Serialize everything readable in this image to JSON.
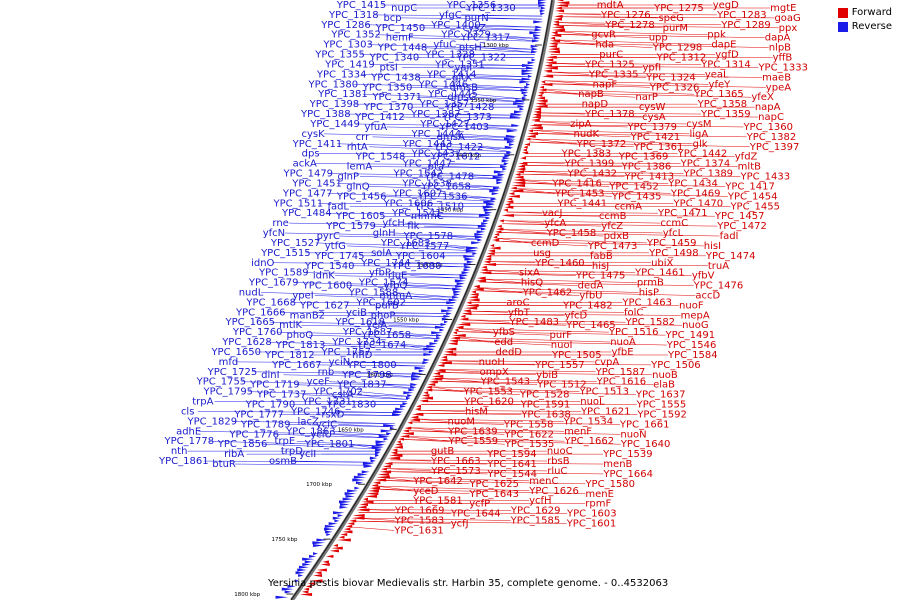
{
  "title": "Yersinia pestis biovar Medievalis str. Harbin 35, complete genome. - 0..4532063",
  "legend": {
    "forward_label": "Forward",
    "reverse_label": "Reverse",
    "forward_color": "#e00000",
    "reverse_color": "#1c1ce8"
  },
  "ticks": [
    "1300 kbp",
    "1350 kbp",
    "1400 kbp",
    "1450 kbp",
    "1500 kbp",
    "1550 kbp",
    "1600 kbp",
    "1650 kbp",
    "1700 kbp",
    "1750 kbp",
    "1800 kbp"
  ],
  "reverse_genes": [
    "YPC_1415",
    "nupC",
    "YPC_1356",
    "YPC_1330",
    "YPC_1318",
    "bcp",
    "yfgC",
    "purN",
    "YPC_1286",
    "YPC_1450",
    "YPC_1400",
    "cysZ",
    "YPC_1352",
    "hemF",
    "YPC_1329",
    "YPC_1317",
    "YPC_1303",
    "YPC_1448",
    "yfuC",
    "ptsH",
    "YPC_1355",
    "YPC_1340",
    "YPC_1328",
    "YPC_1322",
    "YPC_1419",
    "ptsI",
    "YPC_1351",
    "yaiI",
    "YPC_1334",
    "YPC_1438",
    "YPC_1414",
    "gltX",
    "YPC_1380",
    "YPC_1350",
    "YPC_1446",
    "dmsB",
    "YPC_1381",
    "YPC_1371",
    "YPC_1445",
    "dmsC",
    "YPC_1398",
    "YPC_1370",
    "YPC_1357",
    "YPC_1428",
    "YPC_1388",
    "YPC_1412",
    "YPC_1387",
    "YPC_1373",
    "YPC_1449",
    "yfuA",
    "YPC_1427",
    "YPC_1403",
    "cysK",
    "crr",
    "YPC_1444",
    "dmsA",
    "YPC_1411",
    "rhtA",
    "YPC_1443",
    "YPC_1422",
    "dps",
    "YPC_1548",
    "YPC_1437",
    "YPC_1612",
    "ackA",
    "lemA",
    "YPC_1447",
    "pta",
    "YPC_1479",
    "glnP",
    "YPC_1542",
    "YPC_1478",
    "YPC_1451",
    "glnQ",
    "YPC_1538",
    "YPC_1658",
    "YPC_1477",
    "YPC_1456",
    "YPC_1607",
    "YPC_1536",
    "YPC_1511",
    "fadL",
    "YPC_1606",
    "YPC_1510",
    "YPC_1484",
    "YPC_1605",
    "YPC_1541",
    "mnmC",
    "rne",
    "YPC_1579",
    "yfcH",
    "flk",
    "yfcN",
    "pyrC",
    "glnH",
    "YPC_1578",
    "YPC_1527",
    "ytfG",
    "YPC_1683",
    "YPC_1577",
    "YPC_1515",
    "YPC_1745",
    "solA",
    "YPC_1604",
    "idnO",
    "YPC_1540",
    "YPC_1744",
    "YPC_1680",
    "YPC_1589",
    "idnK",
    "yfbP",
    "rluE",
    "YPC_1679",
    "YPC_1600",
    "YPC_1574",
    "yfbQ",
    "nudL",
    "ypeI",
    "YPC_1588",
    "mnmA",
    "YPC_1668",
    "YPC_1627",
    "YPC_1602",
    "purB",
    "YPC_1666",
    "manB2",
    "yciB",
    "phoP",
    "YPC_1665",
    "mtlK",
    "YPC_1618",
    "yciA",
    "YPC_1760",
    "phoQ",
    "YPC_1687",
    "YPC_1658",
    "YPC_1628",
    "YPC_1813",
    "YPC_1734",
    "YPC_1674",
    "YPC_1650",
    "YPC_1812",
    "YPC_1757",
    "hflD",
    "mfd",
    "YPC_1667",
    "yciN",
    "YPC_1800",
    "YPC_1725",
    "dinI",
    "rnb",
    "YPC_1798",
    "YPC_1755",
    "YPC_1719",
    "yceF",
    "YPC_1837",
    "YPC_1795",
    "YPC_1737",
    "YPC_1702",
    "cstA",
    "trpA",
    "YPC_1790",
    "YPC_1731",
    "YPC_1830",
    "cls",
    "YPC_1777",
    "YPC_1746",
    "rsxD",
    "YPC_1829",
    "YPC_1789",
    "lacZ",
    "yciC",
    "adhE",
    "YPC_1776",
    "YPC_1863",
    "yciU",
    "YPC_1778",
    "YPC_1856",
    "trpE",
    "YPC_1801",
    "nth",
    "ribA",
    "trpD",
    "yciI",
    "YPC_1861",
    "btuR",
    "osmB"
  ],
  "forward_genes": [
    "mdtA",
    "YPC_1275",
    "yegD",
    "mgtE",
    "YPC_1276",
    "speG",
    "YPC_1283",
    "goaG",
    "YPC_1278",
    "purM",
    "YPC_1289",
    "ppx",
    "gcvR",
    "upp",
    "ppk",
    "dapA",
    "hda",
    "YPC_1298",
    "dapE",
    "nlpB",
    "purC",
    "YPC_1312",
    "ygfD",
    "yffB",
    "YPC_1325",
    "ypfI",
    "YPC_1314",
    "YPC_1333",
    "YPC_1335",
    "YPC_1324",
    "yeaL",
    "maeB",
    "napF",
    "YPC_1326",
    "yfeY",
    "ypeA",
    "napB",
    "narP",
    "YPC_1365",
    "yfeX",
    "napD",
    "cysW",
    "YPC_1358",
    "napA",
    "YPC_1378",
    "cysA",
    "YPC_1359",
    "napC",
    "zipA",
    "YPC_1379",
    "cysM",
    "YPC_1360",
    "nudK",
    "YPC_1421",
    "ligA",
    "YPC_1382",
    "YPC_1372",
    "YPC_1361",
    "glk",
    "YPC_1397",
    "YPC_1383",
    "YPC_1369",
    "YPC_1442",
    "yfdZ",
    "YPC_1399",
    "YPC_1386",
    "YPC_1374",
    "mltB",
    "YPC_1432",
    "YPC_1413",
    "YPC_1389",
    "YPC_1433",
    "YPC_1416",
    "YPC_1452",
    "YPC_1434",
    "YPC_1417",
    "YPC_1453",
    "YPC_1435",
    "YPC_1469",
    "YPC_1454",
    "YPC_1441",
    "ccmA",
    "YPC_1470",
    "YPC_1455",
    "vacJ",
    "ccmB",
    "YPC_1471",
    "YPC_1457",
    "yfcA",
    "yfcZ",
    "ccmC",
    "YPC_1472",
    "YPC_1458",
    "pdxB",
    "yfcL",
    "fadI",
    "ccmD",
    "YPC_1473",
    "YPC_1459",
    "hisI",
    "usg",
    "fabB",
    "YPC_1498",
    "YPC_1474",
    "YPC_1460",
    "hisJ",
    "ubiX",
    "truA",
    "sixA",
    "YPC_1475",
    "YPC_1461",
    "yfbV",
    "hisQ",
    "dedA",
    "prmB",
    "YPC_1476",
    "YPC_1462",
    "yfbU",
    "hisP",
    "accD",
    "aroC",
    "YPC_1482",
    "YPC_1463",
    "nuoF",
    "yfbT",
    "yfcD",
    "folC",
    "mepA",
    "YPC_1483",
    "YPC_1465",
    "YPC_1582",
    "nuoG",
    "yfbS",
    "purF",
    "YPC_1516",
    "YPC_1491",
    "edd",
    "nuoI",
    "nuoA",
    "YPC_1546",
    "dedD",
    "YPC_1505",
    "yfbE",
    "YPC_1584",
    "nuoH",
    "YPC_1557",
    "cvpA",
    "YPC_1506",
    "ompX",
    "ybiB",
    "YPC_1587",
    "nuoB",
    "YPC_1543",
    "YPC_1512",
    "YPC_1616",
    "elaB",
    "YPC_1553",
    "YPC_1528",
    "YPC_1513",
    "YPC_1637",
    "YPC_1620",
    "YPC_1591",
    "nuoL",
    "YPC_1555",
    "hisM",
    "YPC_1638",
    "YPC_1621",
    "YPC_1592",
    "nuoM",
    "YPC_1558",
    "YPC_1534",
    "YPC_1661",
    "YPC_1639",
    "YPC_1622",
    "menF",
    "nuoN",
    "YPC_1559",
    "YPC_1535",
    "YPC_1662",
    "YPC_1640",
    "gutB",
    "YPC_1594",
    "nuoC",
    "YPC_1539",
    "YPC_1663",
    "YPC_1641",
    "rbsB",
    "menB",
    "YPC_1573",
    "YPC_1544",
    "rluC",
    "YPC_1664",
    "YPC_1642",
    "YPC_1625",
    "menC",
    "YPC_1580",
    "yceD",
    "YPC_1643",
    "YPC_1626",
    "menE",
    "YPC_1581",
    "ycfP",
    "ycfH",
    "rpmF",
    "YPC_1669",
    "YPC_1644",
    "YPC_1629",
    "YPC_1603",
    "YPC_1583",
    "ycfJ",
    "YPC_1585",
    "YPC_1601",
    "YPC_1631"
  ]
}
